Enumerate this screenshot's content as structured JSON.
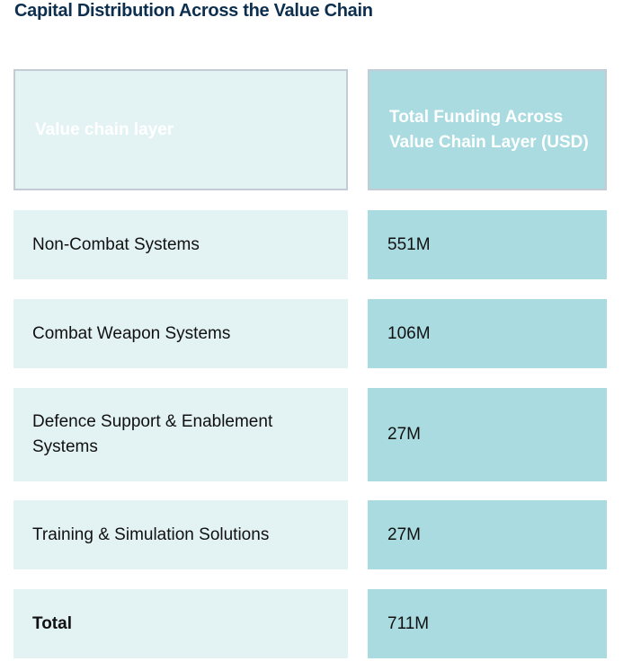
{
  "title": "Capital Distribution Across the Value Chain",
  "table": {
    "headers": [
      "Value chain layer",
      "Total Funding Across Value Chain Layer (USD)"
    ],
    "rows": [
      {
        "layer": "Non-Combat Systems",
        "funding": "551M"
      },
      {
        "layer": "Combat Weapon Systems",
        "funding": "106M"
      },
      {
        "layer": "Defence Support & Enablement Systems",
        "funding": "27M"
      },
      {
        "layer": "Training & Simulation Solutions",
        "funding": "27M"
      },
      {
        "layer": "Total",
        "funding": "711M"
      }
    ]
  },
  "colors": {
    "header_bg": "#0a4472",
    "layer_bg": "#e3f2f3",
    "funding_bg": "#a9dbe0"
  }
}
